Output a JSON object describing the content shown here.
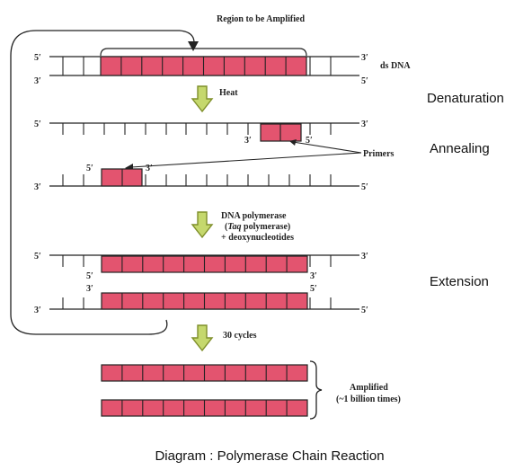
{
  "title": "Region to be Amplified",
  "caption": "Diagram : Polymerase Chain Reaction",
  "labels": {
    "ds_dna": "ds DNA",
    "heat": "Heat",
    "primers": "Primers",
    "polymerase_line1": "DNA polymerase",
    "polymerase_line2_pre": "(",
    "polymerase_line2_italic": "Taq",
    "polymerase_line2_post": " polymerase)",
    "polymerase_line3": "+ deoxynucleotides",
    "cycles": "30 cycles",
    "amplified_line1": "Amplified",
    "amplified_line2": "(~1 billion times)"
  },
  "stages": {
    "denaturation": "Denaturation",
    "annealing": "Annealing",
    "extension": "Extension"
  },
  "ends": {
    "five_prime": "5′",
    "three_prime": "3′"
  },
  "colors": {
    "target": "#e3546f",
    "arrow_fill": "#c5d86d",
    "arrow_stroke": "#7f8f2a",
    "strand": "#222222"
  }
}
